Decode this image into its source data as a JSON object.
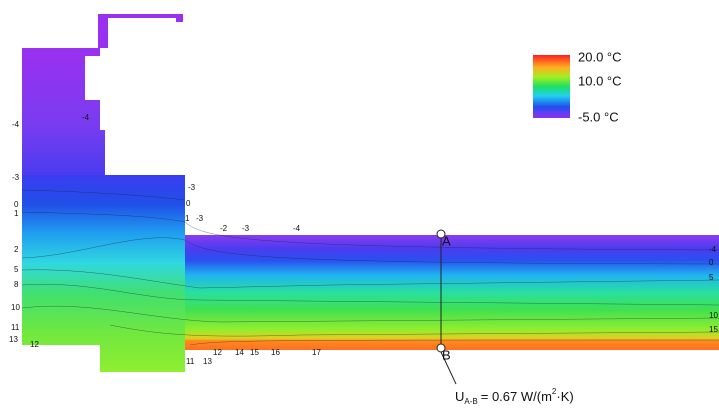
{
  "legend": {
    "labels": [
      "20.0 °C",
      "10.0 °C",
      "-5.0 °C"
    ]
  },
  "isotherm_labels": [
    "-4",
    "-4",
    "-3",
    "0",
    "1",
    "2",
    "5",
    "8",
    "10",
    "11",
    "13",
    "12",
    "-3",
    "0",
    "1",
    "-3",
    "-2",
    "-3",
    "-4",
    "-4",
    "0",
    "5",
    "10",
    "15",
    "11",
    "13",
    "12",
    "14",
    "15",
    "16",
    "17"
  ],
  "points": [
    "A",
    "B"
  ],
  "annotation": {
    "symbol": "U",
    "subscript": "A-B",
    "text": "= 0.67 W/(m",
    "superscript": "2",
    "tail": "·K)"
  }
}
